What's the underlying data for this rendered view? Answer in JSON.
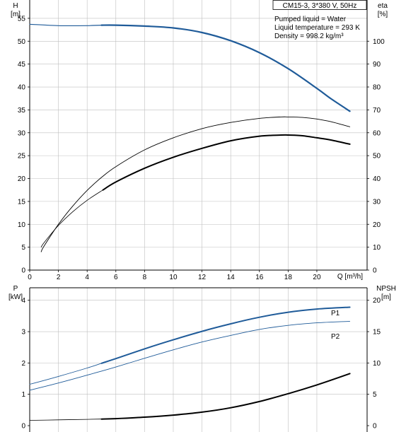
{
  "colors": {
    "blue": "#1f5b99",
    "black": "#000000",
    "axis": "#000000",
    "grid": "#bfbfbf"
  },
  "chart_data": [
    {
      "type": "line",
      "panel": "pump-curves",
      "info_box": {
        "title": "CM15-3, 3*380 V, 50Hz"
      },
      "info_lines": [
        "Pumped liquid = Water",
        "Liquid temperature = 293 K",
        "Density = 998.2 kg/m³"
      ],
      "xlabel": "Q [m³/h]",
      "x_ticks": [
        0,
        2,
        4,
        6,
        8,
        10,
        12,
        14,
        16,
        18,
        20
      ],
      "xlim": [
        0,
        23.5
      ],
      "y_left": {
        "label_line1": "H",
        "label_line2": "[m]",
        "ticks": [
          0,
          5,
          10,
          15,
          20,
          25,
          30,
          35,
          40,
          45,
          50,
          55
        ],
        "lim": [
          0,
          59
        ]
      },
      "y_right": {
        "label_line1": "eta",
        "label_line2": "[%]",
        "ticks": [
          0,
          10,
          20,
          30,
          40,
          50,
          60,
          70,
          80,
          90,
          100
        ],
        "lim": [
          0,
          118
        ]
      },
      "grid": true,
      "series": [
        {
          "axis": "left",
          "color": "blue",
          "width": 1.2,
          "x": [
            0,
            2,
            4,
            5,
            6,
            8,
            10,
            12,
            14,
            16,
            18,
            20,
            21,
            22.3
          ],
          "y": [
            53.7,
            53.4,
            53.4,
            53.5,
            53.5,
            53.3,
            52.9,
            51.9,
            50.1,
            47.5,
            44.0,
            39.7,
            37.4,
            34.7
          ]
        },
        {
          "axis": "left",
          "color": "blue",
          "width": 2.2,
          "x": [
            5,
            6,
            8,
            10,
            12,
            14,
            16,
            18,
            20,
            21,
            22.3
          ],
          "y": [
            53.5,
            53.5,
            53.3,
            52.9,
            51.9,
            50.1,
            47.5,
            44.0,
            39.7,
            37.4,
            34.7
          ]
        },
        {
          "axis": "right",
          "color": "black",
          "width": 0.9,
          "x": [
            0.8,
            1,
            2,
            3,
            4,
            5,
            6,
            8,
            10,
            12,
            14,
            16,
            17.5,
            18,
            19,
            20,
            21,
            22.3
          ],
          "y": [
            8.0,
            10.5,
            20.0,
            28.0,
            34.8,
            40.5,
            45.2,
            52.5,
            57.8,
            61.8,
            64.5,
            66.3,
            66.9,
            66.9,
            66.7,
            66.0,
            64.8,
            62.6
          ]
        },
        {
          "axis": "right",
          "color": "black",
          "width": 2.0,
          "x": [
            5.1,
            6,
            8,
            10,
            12,
            14,
            16,
            17.5,
            18,
            19,
            20,
            21,
            22.3
          ],
          "y": [
            35.0,
            38.5,
            44.5,
            49.3,
            53.2,
            56.5,
            58.5,
            59.0,
            59.0,
            58.7,
            57.8,
            56.8,
            55.0
          ]
        },
        {
          "axis": "right",
          "color": "black",
          "width": 0.8,
          "x": [
            0.8,
            1,
            2,
            3,
            4,
            5.1
          ],
          "y": [
            10.0,
            12.0,
            19.5,
            25.5,
            30.5,
            35.0
          ]
        }
      ]
    },
    {
      "type": "line",
      "panel": "power-npsh",
      "xlim": [
        0,
        23.5
      ],
      "y_left": {
        "label_line1": "P",
        "label_line2": "[kW]",
        "ticks": [
          0,
          1,
          2,
          3,
          4
        ],
        "lim": [
          0,
          4.4
        ]
      },
      "y_right": {
        "label_line1": "NPSH",
        "label_line2": "[m]",
        "ticks": [
          0,
          5,
          10,
          15,
          20
        ],
        "lim": [
          0,
          22
        ]
      },
      "grid": true,
      "labels": {
        "p1": "P1",
        "p2": "P2"
      },
      "series": [
        {
          "name": "P1",
          "axis": "left",
          "color": "blue",
          "width": 0.9,
          "x": [
            0,
            2,
            4,
            5
          ],
          "y": [
            1.32,
            1.57,
            1.84,
            1.99
          ]
        },
        {
          "name": "P1",
          "axis": "left",
          "color": "blue",
          "width": 2.0,
          "x": [
            5,
            6,
            8,
            10,
            12,
            14,
            16,
            18,
            20,
            22.3
          ],
          "y": [
            1.99,
            2.14,
            2.45,
            2.74,
            3.01,
            3.25,
            3.46,
            3.62,
            3.72,
            3.78
          ]
        },
        {
          "name": "P2",
          "axis": "left",
          "color": "blue",
          "width": 0.9,
          "x": [
            0,
            2,
            4,
            5,
            6,
            8,
            10,
            12,
            14,
            16,
            18,
            20,
            22.3
          ],
          "y": [
            1.13,
            1.36,
            1.61,
            1.74,
            1.87,
            2.15,
            2.42,
            2.67,
            2.88,
            3.07,
            3.2,
            3.28,
            3.33
          ]
        },
        {
          "name": "NPSH",
          "axis": "right",
          "color": "black",
          "width": 0.8,
          "x": [
            0,
            2,
            4,
            5
          ],
          "y": [
            0.85,
            0.92,
            1.0,
            1.05
          ]
        },
        {
          "name": "NPSH",
          "axis": "right",
          "color": "black",
          "width": 2.0,
          "x": [
            5,
            6,
            8,
            10,
            12,
            14,
            16,
            18,
            20,
            22.3
          ],
          "y": [
            1.05,
            1.12,
            1.35,
            1.68,
            2.15,
            2.85,
            3.85,
            5.1,
            6.5,
            8.3
          ]
        }
      ]
    }
  ]
}
